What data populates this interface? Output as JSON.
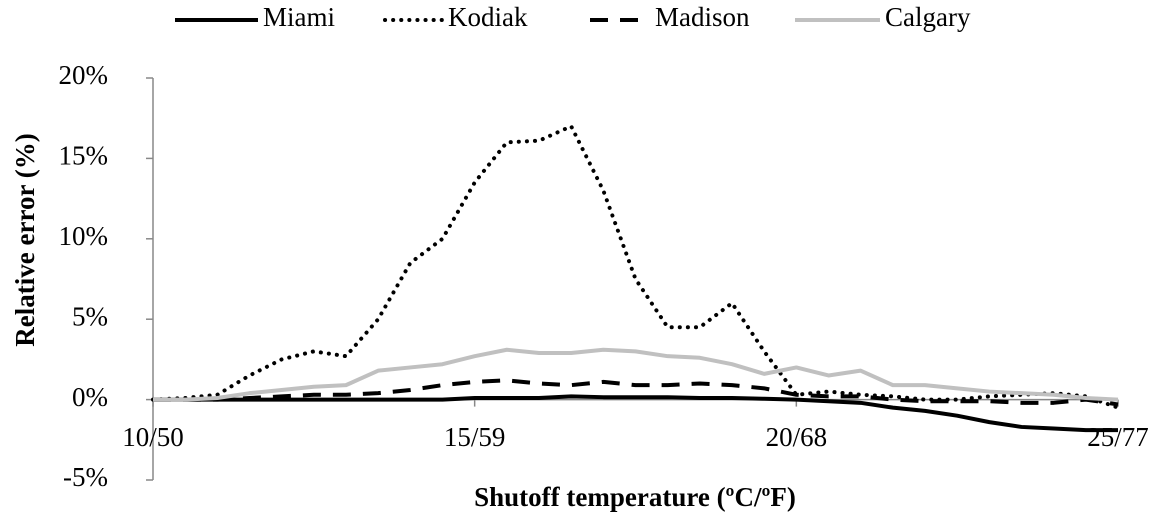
{
  "chart_data": {
    "type": "line",
    "x_label": "Shutoff temperature (ºC/ºF)",
    "y_label": "Relative error (%)",
    "x": [
      10,
      10.5,
      11,
      11.5,
      12,
      12.5,
      13,
      13.5,
      14,
      14.5,
      15,
      15.5,
      16,
      16.5,
      17,
      17.5,
      18,
      18.5,
      19,
      19.5,
      20,
      20.5,
      21,
      21.5,
      22,
      22.5,
      23,
      23.5,
      24,
      24.5,
      25
    ],
    "series": [
      {
        "name": "Miami",
        "color": "#000000",
        "style": "solid",
        "values": [
          0,
          0,
          0,
          0,
          0,
          0,
          0,
          0,
          0,
          0,
          0.1,
          0.1,
          0.1,
          0.2,
          0.15,
          0.15,
          0.15,
          0.1,
          0.1,
          0.05,
          0,
          -0.1,
          -0.2,
          -0.5,
          -0.7,
          -1.0,
          -1.4,
          -1.7,
          -1.8,
          -1.9,
          -1.9
        ]
      },
      {
        "name": "Kodiak",
        "color": "#000000",
        "style": "dotted",
        "values": [
          0,
          0.1,
          0.3,
          1.5,
          2.5,
          3.0,
          2.7,
          5.0,
          8.5,
          10,
          13.5,
          16,
          16.1,
          17,
          13,
          7.5,
          4.5,
          4.5,
          6,
          3,
          0.3,
          0.5,
          0.3,
          0.2,
          0,
          0,
          0.2,
          0.3,
          0.4,
          0.2,
          -0.5
        ]
      },
      {
        "name": "Madison",
        "color": "#000000",
        "style": "dashed",
        "values": [
          0,
          0,
          0,
          0.1,
          0.2,
          0.3,
          0.3,
          0.4,
          0.6,
          0.9,
          1.1,
          1.2,
          1.0,
          0.9,
          1.1,
          0.9,
          0.9,
          1.0,
          0.9,
          0.7,
          0.3,
          0.2,
          0.2,
          0.0,
          -0.1,
          -0.1,
          -0.1,
          -0.2,
          -0.2,
          0.0,
          -0.3
        ]
      },
      {
        "name": "Calgary",
        "color": "#c0c0c0",
        "style": "solid",
        "values": [
          0,
          0,
          0.1,
          0.4,
          0.6,
          0.8,
          0.9,
          1.8,
          2.0,
          2.2,
          2.7,
          3.1,
          2.9,
          2.9,
          3.1,
          3.0,
          2.7,
          2.6,
          2.2,
          1.6,
          2.0,
          1.5,
          1.8,
          0.9,
          0.9,
          0.7,
          0.5,
          0.4,
          0.3,
          0.1,
          0
        ]
      }
    ],
    "xlim": [
      10,
      25
    ],
    "xticks": [
      {
        "value": 10,
        "label": "10/50"
      },
      {
        "value": 15,
        "label": "15/59"
      },
      {
        "value": 20,
        "label": "20/68"
      },
      {
        "value": 25,
        "label": "25/77"
      }
    ],
    "ylim": [
      -5,
      20
    ],
    "yticks": [
      {
        "value": -5,
        "label": "-5%"
      },
      {
        "value": 0,
        "label": "0%"
      },
      {
        "value": 5,
        "label": "5%"
      },
      {
        "value": 10,
        "label": "10%"
      },
      {
        "value": 15,
        "label": "15%"
      },
      {
        "value": 20,
        "label": "20%"
      }
    ],
    "legend": "top"
  }
}
